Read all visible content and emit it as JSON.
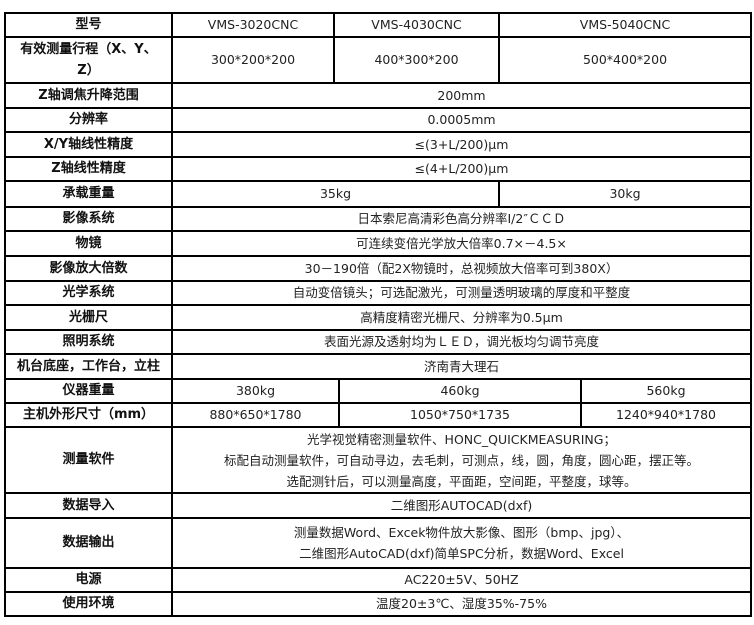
{
  "table": {
    "header": {
      "label": "型号",
      "models": [
        "VMS-3020CNC",
        "VMS-4030CNC",
        "VMS-5040CNC"
      ]
    },
    "stroke": {
      "label_line1": "有效测量行程（X、Y、",
      "label_line2": "Z）",
      "values": [
        "300*200*200",
        "400*300*200",
        "500*400*200"
      ]
    },
    "z_range": {
      "label": "Z轴调焦升降范围",
      "value": "200mm"
    },
    "resolution": {
      "label": "分辨率",
      "value": "0.0005mm"
    },
    "xy_accuracy": {
      "label": "X/Y轴线性精度",
      "value": "≤(3+L/200)μm"
    },
    "z_accuracy": {
      "label": "Z轴线性精度",
      "value": "≤(4+L/200)μm"
    },
    "load": {
      "label": "承载重量",
      "values": [
        "35kg",
        "30kg"
      ]
    },
    "imaging": {
      "label": "影像系统",
      "value": "日本索尼高清彩色高分辨率I/2″ＣＣＤ"
    },
    "objective": {
      "label": "物镜",
      "value": "可连续变倍光学放大倍率0.7×－4.5×"
    },
    "magnification": {
      "label": "影像放大倍数",
      "value": "30－190倍（配2X物镜时，总视频放大倍率可到380X）"
    },
    "optics": {
      "label": "光学系统",
      "value": "自动变倍镜头；可选配激光，可测量透明玻璃的厚度和平整度"
    },
    "grating": {
      "label": "光栅尺",
      "value": "高精度精密光栅尺、分辨率为0.5μm"
    },
    "lighting": {
      "label": "照明系统",
      "value": "表面光源及透射均为ＬＥＤ，调光板均匀调节亮度"
    },
    "base": {
      "label": "机台底座，工作台，立柱",
      "value": "济南青大理石"
    },
    "weight": {
      "label": "仪器重量",
      "values": [
        "380kg",
        "460kg",
        "560kg"
      ]
    },
    "dimensions": {
      "label": "主机外形尺寸（mm）",
      "values": [
        "880*650*1780",
        "1050*750*1735",
        "1240*940*1780"
      ]
    },
    "software": {
      "label": "测量软件",
      "lines": [
        "光学视觉精密测量软件、HONC_QUICKMEASURING；",
        "标配自动测量软件，可自动寻边，去毛刺，可测点，线，圆，角度，圆心距，摆正等。",
        "选配测针后，可以测量高度，平面距，空间距，平整度，球等。"
      ]
    },
    "data_import": {
      "label": "数据导入",
      "value": "二维图形AUTOCAD(dxf)"
    },
    "data_export": {
      "label": "数据输出",
      "lines": [
        "测量数据Word、Excek物件放大影像、图形（bmp、jpg）、",
        "二维图形AutoCAD(dxf)简单SPC分析，数据Word、Excel"
      ]
    },
    "power": {
      "label": "电源",
      "value": "AC220±5V、50HZ"
    },
    "environment": {
      "label": "使用环境",
      "value": "温度20±3℃、湿度35%-75%"
    }
  }
}
